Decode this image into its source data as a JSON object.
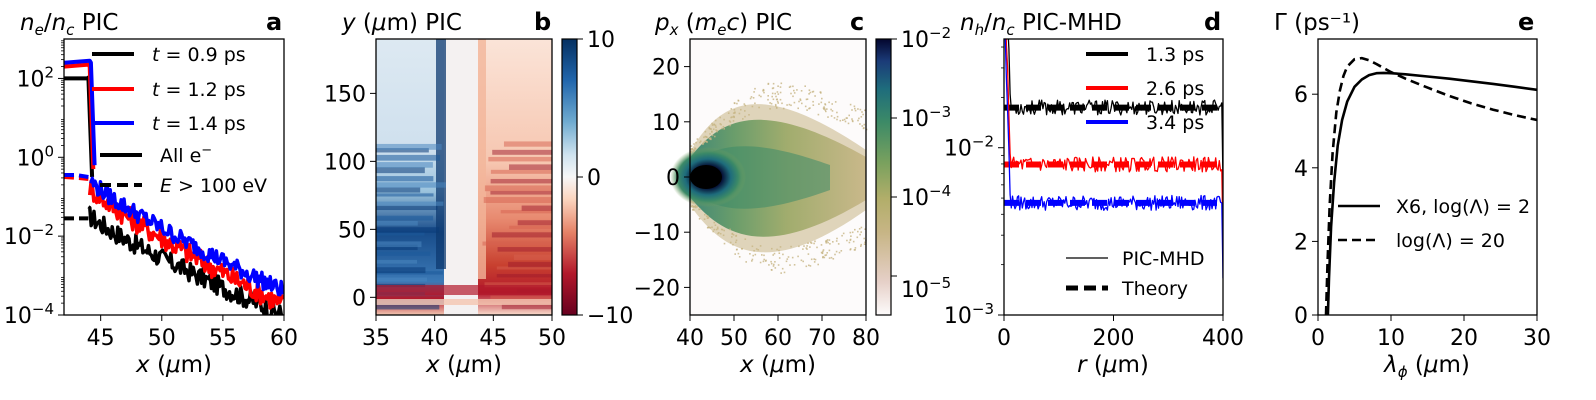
{
  "chart_data": [
    {
      "type": "line",
      "panel_label": "a",
      "title": "n_e/n_c PIC",
      "xlabel": "x (μm)",
      "ylabel": "",
      "xlim": [
        42,
        60
      ],
      "ylim_log10": [
        -4,
        3
      ],
      "yscale": "log",
      "xticks": [
        "45",
        "50",
        "55",
        "60"
      ],
      "yticks": [
        "10^2",
        "10^0",
        "10^-2",
        "10^-4"
      ],
      "legend_placement": "top-right",
      "legend": [
        "t = 0.9 ps",
        "t = 1.2 ps",
        "t = 1.4 ps",
        "All e⁻",
        "E > 100 eV"
      ],
      "series": [
        {
          "name": "t = 0.9 ps",
          "color": "#000000",
          "style": "solid",
          "x": [
            42,
            43.9,
            44.0,
            44.3
          ],
          "y_log10": [
            2.0,
            2.0,
            2.02,
            -0.5
          ]
        },
        {
          "name": "t = 1.2 ps",
          "color": "#ff0000",
          "style": "solid",
          "x": [
            42,
            44.0,
            44.1,
            44.4
          ],
          "y_log10": [
            2.3,
            2.35,
            2.3,
            -0.3
          ]
        },
        {
          "name": "t = 1.4 ps",
          "color": "#0000ff",
          "style": "solid",
          "x": [
            42,
            44.1,
            44.2,
            44.5
          ],
          "y_log10": [
            2.4,
            2.45,
            2.4,
            -0.2
          ]
        },
        {
          "name": "E > 100 eV, t = 0.9 ps",
          "color": "#000000",
          "style": "dashed",
          "x": [
            42,
            43,
            44
          ],
          "y_log10": [
            -1.55,
            -1.55,
            -1.55
          ]
        },
        {
          "name": "E > 100 eV, t = 1.2 ps",
          "color": "#ff0000",
          "style": "dashed",
          "x": [
            42,
            43,
            44
          ],
          "y_log10": [
            -0.5,
            -0.52,
            -0.55
          ]
        },
        {
          "name": "E > 100 eV, t = 1.4 ps",
          "color": "#0000ff",
          "style": "dashed",
          "x": [
            42,
            43,
            44
          ],
          "y_log10": [
            -0.45,
            -0.45,
            -0.5
          ]
        }
      ],
      "tails": [
        {
          "color": "#000000",
          "x_start": 44.0,
          "x_end": 60,
          "y_start_log10": -1.45,
          "y_end_log10": -4.0,
          "amp": 0.25
        },
        {
          "color": "#ff0000",
          "x_start": 44.1,
          "x_end": 60,
          "y_start_log10": -0.75,
          "y_end_log10": -3.75,
          "amp": 0.28
        },
        {
          "color": "#0000ff",
          "x_start": 44.2,
          "x_end": 60,
          "y_start_log10": -0.6,
          "y_end_log10": -3.4,
          "amp": 0.22
        }
      ]
    },
    {
      "type": "heatmap",
      "panel_label": "b",
      "title": "y (μm) PIC",
      "xlabel": "x (μm)",
      "xlim": [
        35,
        50
      ],
      "ylim": [
        -13,
        190
      ],
      "xticks": [
        "35",
        "40",
        "45",
        "50"
      ],
      "yticks": [
        "0",
        "50",
        "100",
        "150"
      ],
      "colorbar": {
        "min": -10,
        "max": 10,
        "ticks": [
          "10",
          "0",
          "−10"
        ],
        "colormap": "RdBu"
      }
    },
    {
      "type": "heatmap",
      "panel_label": "c",
      "title": "p_x (m_e c) PIC",
      "xlabel": "x (μm)",
      "xlim": [
        40,
        80
      ],
      "ylim": [
        -25,
        25
      ],
      "xticks": [
        "40",
        "50",
        "60",
        "70",
        "80"
      ],
      "yticks": [
        "20",
        "10",
        "0",
        "−10",
        "−20"
      ],
      "colorbar": {
        "scale": "log",
        "min_log10": -5.5,
        "max_log10": -2,
        "ticks": [
          "10^-2",
          "10^-3",
          "10^-4",
          "10^-5"
        ],
        "colormap": "gist_earth_r"
      }
    },
    {
      "type": "line",
      "panel_label": "d",
      "title": "n_h/n_c PIC-MHD",
      "xlabel": "r (μm)",
      "yscale": "log",
      "xlim": [
        0,
        400
      ],
      "ylim_log10": [
        -3,
        -1.35
      ],
      "xticks": [
        "0",
        "200",
        "400"
      ],
      "yticks": [
        "10^-2",
        "10^-3"
      ],
      "legend_top": [
        "1.3 ps",
        "2.6 ps",
        "3.4 ps"
      ],
      "legend_bottom": [
        "PIC-MHD",
        "Theory"
      ],
      "series": [
        {
          "name": "1.3 ps",
          "color": "#000000",
          "theory_log10": -1.76
        },
        {
          "name": "2.6 ps",
          "color": "#ff0000",
          "theory_log10": -2.1
        },
        {
          "name": "3.4 ps",
          "color": "#0000ff",
          "theory_log10": -2.33
        }
      ]
    },
    {
      "type": "line",
      "panel_label": "e",
      "title": "Γ (ps⁻¹)",
      "xlabel": "λ_ϕ (μm)",
      "xlim": [
        0,
        30
      ],
      "ylim": [
        0,
        7.5
      ],
      "xticks": [
        "0",
        "10",
        "20",
        "30"
      ],
      "yticks": [
        "0",
        "2",
        "4",
        "6"
      ],
      "legend_placement": "center-right",
      "legend": [
        "X6, log(Λ) = 2",
        "log(Λ) = 20"
      ],
      "series": [
        {
          "name": "X6, log(Λ) = 2",
          "color": "#000000",
          "style": "solid",
          "x": [
            1.35,
            1.5,
            1.8,
            2.2,
            2.7,
            3.3,
            4,
            5,
            6,
            7,
            8,
            9,
            10,
            12,
            15,
            18,
            21,
            24,
            27,
            30
          ],
          "y": [
            0,
            1.0,
            2.4,
            3.6,
            4.6,
            5.3,
            5.8,
            6.2,
            6.4,
            6.52,
            6.57,
            6.58,
            6.57,
            6.54,
            6.48,
            6.42,
            6.35,
            6.28,
            6.2,
            6.12
          ]
        },
        {
          "name": "log(Λ) = 20",
          "color": "#000000",
          "style": "dashed",
          "x": [
            1.1,
            1.3,
            1.6,
            2.0,
            2.5,
            3.0,
            3.5,
            4,
            5,
            6,
            7,
            8,
            10,
            12,
            15,
            18,
            21,
            24,
            27,
            30
          ],
          "y": [
            0,
            1.4,
            3.0,
            4.4,
            5.5,
            6.1,
            6.5,
            6.75,
            6.95,
            6.98,
            6.92,
            6.82,
            6.6,
            6.42,
            6.18,
            5.95,
            5.75,
            5.58,
            5.43,
            5.3
          ]
        }
      ]
    }
  ]
}
